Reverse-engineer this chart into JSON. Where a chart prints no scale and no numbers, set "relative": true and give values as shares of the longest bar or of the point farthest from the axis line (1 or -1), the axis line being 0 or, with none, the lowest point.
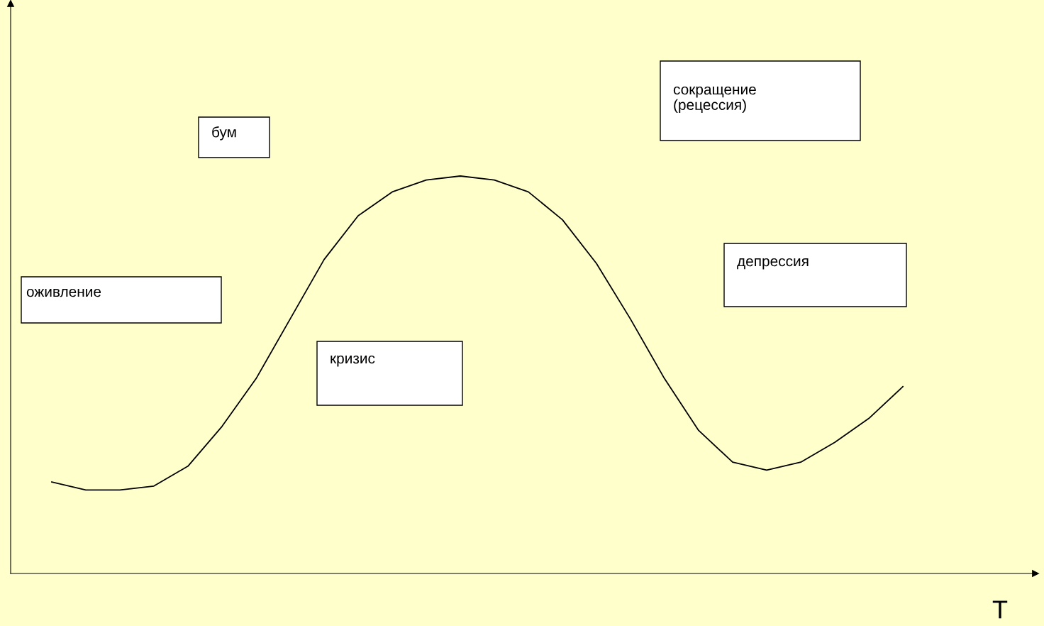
{
  "chart_data": {
    "type": "line",
    "relative": true,
    "xlabel": "T",
    "color": "#000000",
    "line_style": "solid",
    "marker": "none",
    "categories": [
      null,
      null,
      null,
      null,
      null,
      null,
      null,
      null,
      null,
      null,
      null,
      null,
      null,
      null,
      null,
      null,
      null,
      null,
      null,
      null,
      null,
      null,
      null,
      null,
      null,
      null
    ],
    "values": [
      0.23,
      0.21,
      0.21,
      0.22,
      0.27,
      0.37,
      0.49,
      0.64,
      0.79,
      0.9,
      0.96,
      0.99,
      1.0,
      0.99,
      0.96,
      0.89,
      0.78,
      0.64,
      0.49,
      0.36,
      0.28,
      0.26,
      0.28,
      0.33,
      0.39,
      0.47
    ],
    "annotations": [
      "оживление",
      "бум",
      "кризис",
      "сокращение\n(рецессия)",
      "депрессия"
    ]
  }
}
